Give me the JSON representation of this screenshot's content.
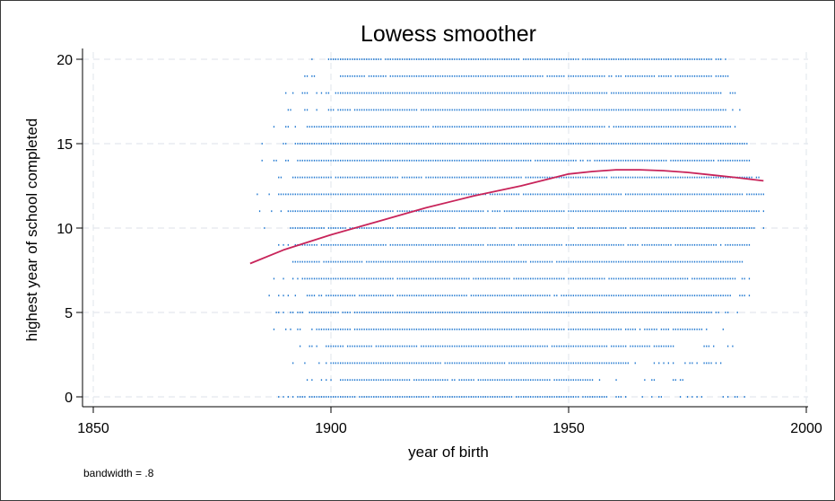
{
  "chart_data": {
    "type": "scatter",
    "title": "Lowess smoother",
    "xlabel": "year of birth",
    "ylabel": "highest year of school completed",
    "note": "bandwidth = .8",
    "xlim": [
      1850,
      2000
    ],
    "ylim": [
      0,
      20
    ],
    "x_ticks": [
      "1850",
      "1900",
      "1950",
      "2000"
    ],
    "y_ticks": [
      "0",
      "5",
      "10",
      "15",
      "20"
    ],
    "grid": "dashed, light",
    "colors": {
      "points": "#1f77d0",
      "smoother": "#c8245a",
      "grid": "#e4e8ee",
      "axis": "#000000"
    },
    "scatter_bands": [
      {
        "y": 20,
        "x_from": 1893,
        "x_to": 1985,
        "dense_from": 1900,
        "dense_to": 1982
      },
      {
        "y": 19,
        "x_from": 1892,
        "x_to": 1984,
        "dense_from": 1902,
        "dense_to": 1980
      },
      {
        "y": 18,
        "x_from": 1890,
        "x_to": 1985,
        "dense_from": 1901,
        "dense_to": 1982
      },
      {
        "y": 17,
        "x_from": 1889,
        "x_to": 1986,
        "dense_from": 1900,
        "dense_to": 1983
      },
      {
        "y": 16,
        "x_from": 1887,
        "x_to": 1987,
        "dense_from": 1895,
        "dense_to": 1985
      },
      {
        "y": 15,
        "x_from": 1884,
        "x_to": 1990,
        "dense_from": 1893,
        "dense_to": 1987
      },
      {
        "y": 14,
        "x_from": 1885,
        "x_to": 1990,
        "dense_from": 1893,
        "dense_to": 1988
      },
      {
        "y": 13,
        "x_from": 1886,
        "x_to": 1991,
        "dense_from": 1892,
        "dense_to": 1990
      },
      {
        "y": 12,
        "x_from": 1884,
        "x_to": 1991,
        "dense_from": 1889,
        "dense_to": 1991
      },
      {
        "y": 11,
        "x_from": 1883,
        "x_to": 1991,
        "dense_from": 1891,
        "dense_to": 1990
      },
      {
        "y": 10,
        "x_from": 1886,
        "x_to": 1991,
        "dense_from": 1892,
        "dense_to": 1989
      },
      {
        "y": 9,
        "x_from": 1887,
        "x_to": 1990,
        "dense_from": 1893,
        "dense_to": 1988
      },
      {
        "y": 8,
        "x_from": 1887,
        "x_to": 1990,
        "dense_from": 1892,
        "dense_to": 1986
      },
      {
        "y": 7,
        "x_from": 1887,
        "x_to": 1989,
        "dense_from": 1894,
        "dense_to": 1985
      },
      {
        "y": 6,
        "x_from": 1886,
        "x_to": 1989,
        "dense_from": 1895,
        "dense_to": 1984
      },
      {
        "y": 5,
        "x_from": 1888,
        "x_to": 1987,
        "dense_from": 1896,
        "dense_to": 1980
      },
      {
        "y": 4,
        "x_from": 1888,
        "x_to": 1985,
        "dense_from": 1897,
        "dense_to": 1977
      },
      {
        "y": 3,
        "x_from": 1890,
        "x_to": 1985,
        "dense_from": 1899,
        "dense_to": 1972
      },
      {
        "y": 2,
        "x_from": 1890,
        "x_to": 1982,
        "dense_from": 1900,
        "dense_to": 1962
      },
      {
        "y": 1,
        "x_from": 1893,
        "x_to": 1976,
        "dense_from": 1902,
        "dense_to": 1955
      },
      {
        "y": 0,
        "x_from": 1883,
        "x_to": 1987,
        "dense_from": 1893,
        "dense_to": 1958
      }
    ],
    "series": [
      {
        "type": "line",
        "x": [
          1883,
          1890,
          1900,
          1910,
          1920,
          1930,
          1940,
          1950,
          1955,
          1960,
          1965,
          1970,
          1975,
          1980,
          1985,
          1991
        ],
        "y": [
          7.9,
          8.7,
          9.6,
          10.4,
          11.2,
          11.9,
          12.5,
          13.2,
          13.35,
          13.45,
          13.45,
          13.4,
          13.3,
          13.15,
          13.0,
          12.8
        ]
      }
    ]
  }
}
